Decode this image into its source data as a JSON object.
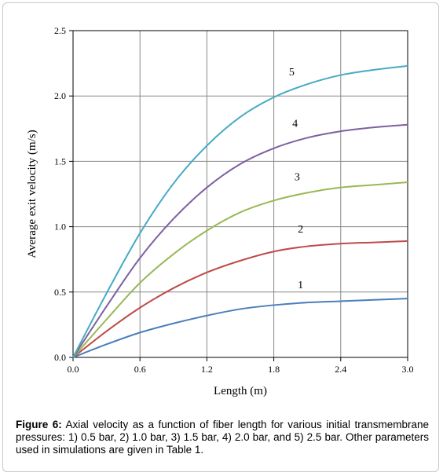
{
  "chart_data": {
    "type": "line",
    "xlabel": "Length (m)",
    "ylabel": "Average exit velocity (m/s)",
    "xlim": [
      0,
      3.0
    ],
    "ylim": [
      0,
      2.5
    ],
    "xticks": [
      "0.0",
      "0.6",
      "1.2",
      "1.8",
      "2.4",
      "3.0"
    ],
    "yticks": [
      "0.0",
      "0.5",
      "1.0",
      "1.5",
      "2.0",
      "2.5"
    ],
    "grid": true,
    "x": [
      0,
      0.3,
      0.6,
      0.9,
      1.2,
      1.5,
      1.8,
      2.1,
      2.4,
      2.7,
      3.0
    ],
    "series": [
      {
        "name": "1",
        "color": "#4a7ebb",
        "values": [
          0,
          0.1,
          0.19,
          0.26,
          0.32,
          0.37,
          0.4,
          0.42,
          0.43,
          0.44,
          0.45
        ]
      },
      {
        "name": "2",
        "color": "#be4b48",
        "values": [
          0,
          0.2,
          0.38,
          0.53,
          0.65,
          0.74,
          0.81,
          0.85,
          0.87,
          0.88,
          0.89
        ]
      },
      {
        "name": "3",
        "color": "#98b954",
        "values": [
          0,
          0.29,
          0.57,
          0.79,
          0.97,
          1.11,
          1.2,
          1.26,
          1.3,
          1.32,
          1.34
        ]
      },
      {
        "name": "4",
        "color": "#7d60a0",
        "values": [
          0,
          0.39,
          0.76,
          1.06,
          1.3,
          1.48,
          1.6,
          1.68,
          1.73,
          1.76,
          1.78
        ]
      },
      {
        "name": "5",
        "color": "#46aac5",
        "values": [
          0,
          0.49,
          0.95,
          1.33,
          1.62,
          1.84,
          1.99,
          2.09,
          2.16,
          2.2,
          2.23
        ]
      }
    ]
  },
  "caption": {
    "label": "Figure 6:",
    "text": " Axial velocity as a function of fiber length for various initial transmembrane pressures: 1) 0.5 bar, 2) 1.0 bar, 3) 1.5 bar, 4) 2.0 bar, and 5) 2.5 bar.  Other parameters used in simulations are given in Table 1."
  }
}
